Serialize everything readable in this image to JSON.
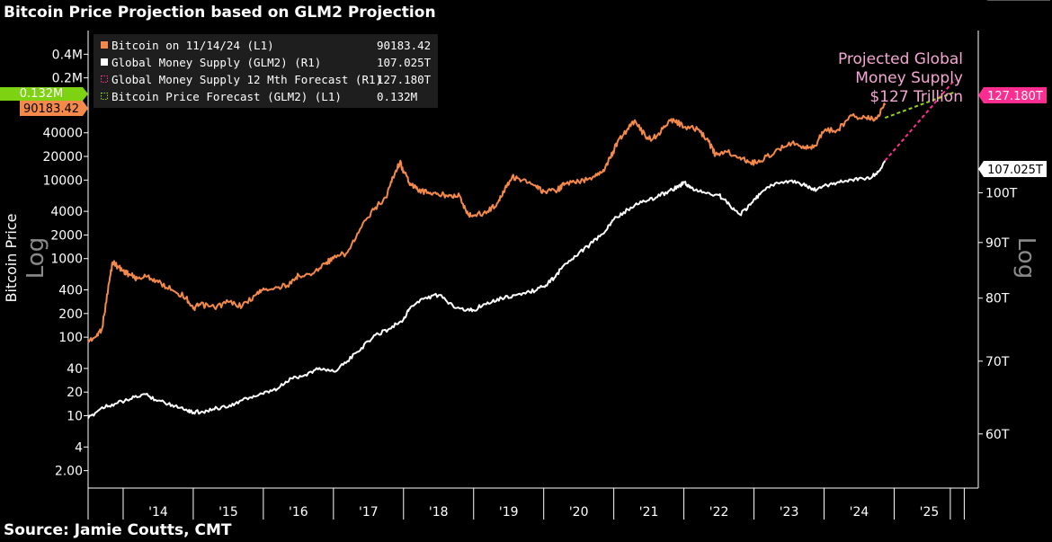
{
  "title": "Bitcoin Price Projection based on GLM2 Projection",
  "source": "Source: Jamie Coutts, CMT",
  "colors": {
    "bitcoin": "#f5894a",
    "gm2": "#ffffff",
    "gm2_forecast": "#ff2f8f",
    "btc_forecast": "#93d31d",
    "badge_pink": "#ff2d8f",
    "badge_green": "#7dd312",
    "badge_orange": "#f5894a"
  },
  "chart_data": {
    "type": "line",
    "title": "Bitcoin Price Projection based on GLM2 Projection",
    "x_ticks": [
      "'14",
      "'15",
      "'16",
      "'17",
      "'18",
      "'19",
      "'20",
      "'21",
      "'22",
      "'23",
      "'24",
      "'25"
    ],
    "x_range": [
      2013.5,
      2026.2
    ],
    "left_axis": {
      "label": "Bitcoin Price",
      "scale_word": "Log",
      "scale": "log",
      "range": [
        1.2,
        800000
      ],
      "ticks": [
        {
          "v": 2,
          "label": "2.00"
        },
        {
          "v": 4,
          "label": "4"
        },
        {
          "v": 10,
          "label": "10"
        },
        {
          "v": 20,
          "label": "20"
        },
        {
          "v": 40,
          "label": "40"
        },
        {
          "v": 100,
          "label": "100"
        },
        {
          "v": 200,
          "label": "200"
        },
        {
          "v": 400,
          "label": "400"
        },
        {
          "v": 1000,
          "label": "1000"
        },
        {
          "v": 2000,
          "label": "2000"
        },
        {
          "v": 4000,
          "label": "4000"
        },
        {
          "v": 10000,
          "label": "10000"
        },
        {
          "v": 20000,
          "label": "20000"
        },
        {
          "v": 40000,
          "label": "40000"
        },
        {
          "v": 200000,
          "label": "0.2M"
        },
        {
          "v": 400000,
          "label": "0.4M"
        }
      ]
    },
    "right_axis": {
      "scale_word": "Log",
      "scale": "log",
      "range_trillions": [
        53.5,
        141
      ],
      "ticks": [
        {
          "v": 60,
          "label": "60T"
        },
        {
          "v": 70,
          "label": "70T"
        },
        {
          "v": 80,
          "label": "80T"
        },
        {
          "v": 90,
          "label": "90T"
        },
        {
          "v": 100,
          "label": "100T"
        }
      ]
    },
    "legend": [
      {
        "name": "Bitcoin on 11/14/24 (L1)",
        "value": "90183.42",
        "marker": "square",
        "color_key": "bitcoin"
      },
      {
        "name": "Global Money Supply (GLM2) (R1)",
        "value": "107.025T",
        "marker": "square",
        "color_key": "gm2"
      },
      {
        "name": "Global Money Supply 12 Mth Forecast  (R1)",
        "value": "127.180T",
        "marker": "dotted",
        "color_key": "gm2_forecast"
      },
      {
        "name": "Bitcoin Price Forecast (GLM2) (L1)",
        "value": "0.132M",
        "marker": "dotted",
        "color_key": "btc_forecast"
      }
    ],
    "series": [
      {
        "name": "Bitcoin on 11/14/24 (L1)",
        "axis": "left",
        "color_key": "bitcoin",
        "x": [
          2013.5,
          2013.6,
          2013.7,
          2013.8,
          2013.85,
          2013.92,
          2014.0,
          2014.1,
          2014.2,
          2014.35,
          2014.5,
          2014.7,
          2014.9,
          2015.0,
          2015.1,
          2015.3,
          2015.5,
          2015.7,
          2015.9,
          2016.0,
          2016.2,
          2016.4,
          2016.5,
          2016.7,
          2016.9,
          2017.0,
          2017.2,
          2017.4,
          2017.6,
          2017.75,
          2017.85,
          2017.95,
          2018.0,
          2018.1,
          2018.2,
          2018.35,
          2018.5,
          2018.65,
          2018.8,
          2018.9,
          2019.0,
          2019.2,
          2019.35,
          2019.45,
          2019.55,
          2019.7,
          2019.9,
          2020.0,
          2020.2,
          2020.3,
          2020.5,
          2020.7,
          2020.85,
          2020.95,
          2021.05,
          2021.2,
          2021.3,
          2021.45,
          2021.55,
          2021.7,
          2021.85,
          2022.0,
          2022.2,
          2022.35,
          2022.45,
          2022.6,
          2022.8,
          2022.95,
          2023.1,
          2023.3,
          2023.5,
          2023.7,
          2023.85,
          2024.0,
          2024.2,
          2024.4,
          2024.6,
          2024.75,
          2024.87
        ],
        "y": [
          90,
          100,
          130,
          500,
          900,
          800,
          700,
          620,
          560,
          600,
          500,
          400,
          320,
          230,
          260,
          240,
          280,
          250,
          350,
          420,
          430,
          480,
          620,
          640,
          900,
          1000,
          1200,
          2500,
          4500,
          6000,
          11000,
          17000,
          13000,
          9000,
          7500,
          7000,
          6500,
          6500,
          6300,
          3800,
          3500,
          4000,
          5200,
          8000,
          11000,
          10000,
          8000,
          7200,
          7500,
          9000,
          9500,
          11000,
          13500,
          19000,
          30000,
          45000,
          58000,
          36000,
          33000,
          45000,
          60000,
          47000,
          44000,
          31000,
          21000,
          23000,
          19500,
          16500,
          17500,
          23000,
          30000,
          27000,
          26000,
          42000,
          44000,
          66000,
          62000,
          60000,
          90183
        ]
      },
      {
        "name": "Global Money Supply (GLM2) (R1)",
        "axis": "right",
        "color_key": "gm2",
        "unit": "T",
        "x": [
          2013.5,
          2013.7,
          2013.9,
          2014.1,
          2014.3,
          2014.5,
          2014.7,
          2014.9,
          2015.0,
          2015.2,
          2015.4,
          2015.6,
          2015.8,
          2016.0,
          2016.2,
          2016.4,
          2016.6,
          2016.8,
          2017.0,
          2017.2,
          2017.4,
          2017.6,
          2017.8,
          2018.0,
          2018.1,
          2018.3,
          2018.5,
          2018.7,
          2018.9,
          2019.0,
          2019.2,
          2019.4,
          2019.6,
          2019.8,
          2020.0,
          2020.15,
          2020.3,
          2020.5,
          2020.7,
          2020.9,
          2021.0,
          2021.2,
          2021.4,
          2021.6,
          2021.8,
          2021.95,
          2022.0,
          2022.1,
          2022.3,
          2022.5,
          2022.65,
          2022.8,
          2022.95,
          2023.1,
          2023.3,
          2023.5,
          2023.7,
          2023.85,
          2024.0,
          2024.2,
          2024.4,
          2024.6,
          2024.75,
          2024.87
        ],
        "y": [
          62.0,
          63.5,
          64.0,
          64.6,
          65.3,
          64.4,
          63.8,
          63.2,
          62.8,
          63.0,
          63.5,
          64.0,
          64.8,
          65.3,
          66.0,
          67.5,
          68.0,
          69.0,
          68.5,
          70.0,
          72.0,
          74.0,
          75.0,
          76.5,
          78.5,
          80.0,
          80.5,
          78.8,
          78.0,
          78.0,
          79.3,
          80.0,
          80.5,
          81.0,
          82.0,
          83.5,
          86.0,
          88.0,
          90.0,
          92.5,
          94.5,
          96.5,
          98.0,
          99.0,
          100.5,
          101.5,
          102.3,
          101.0,
          100.0,
          99.5,
          97.5,
          95.5,
          97.5,
          100.0,
          102.0,
          102.5,
          101.8,
          100.5,
          101.5,
          102.3,
          102.8,
          103.1,
          104.0,
          107.025
        ]
      },
      {
        "name": "Global Money Supply 12 Mth Forecast  (R1)",
        "axis": "right",
        "color_key": "gm2_forecast",
        "style": "dotted",
        "x": [
          2024.87,
          2025.87
        ],
        "y": [
          107.025,
          127.18
        ]
      },
      {
        "name": "Bitcoin Price Forecast (GLM2) (L1)",
        "axis": "left",
        "color_key": "btc_forecast",
        "style": "dotted",
        "x": [
          2024.87,
          2025.87
        ],
        "y": [
          62000,
          132000
        ]
      }
    ],
    "annotation": [
      "Projected Global",
      "Money Supply",
      "$127 Trillion"
    ],
    "badges": {
      "right_top": "127.180T",
      "right_mid": "107.025T",
      "left_green": "0.132M",
      "left_orange": "90183.42"
    }
  }
}
